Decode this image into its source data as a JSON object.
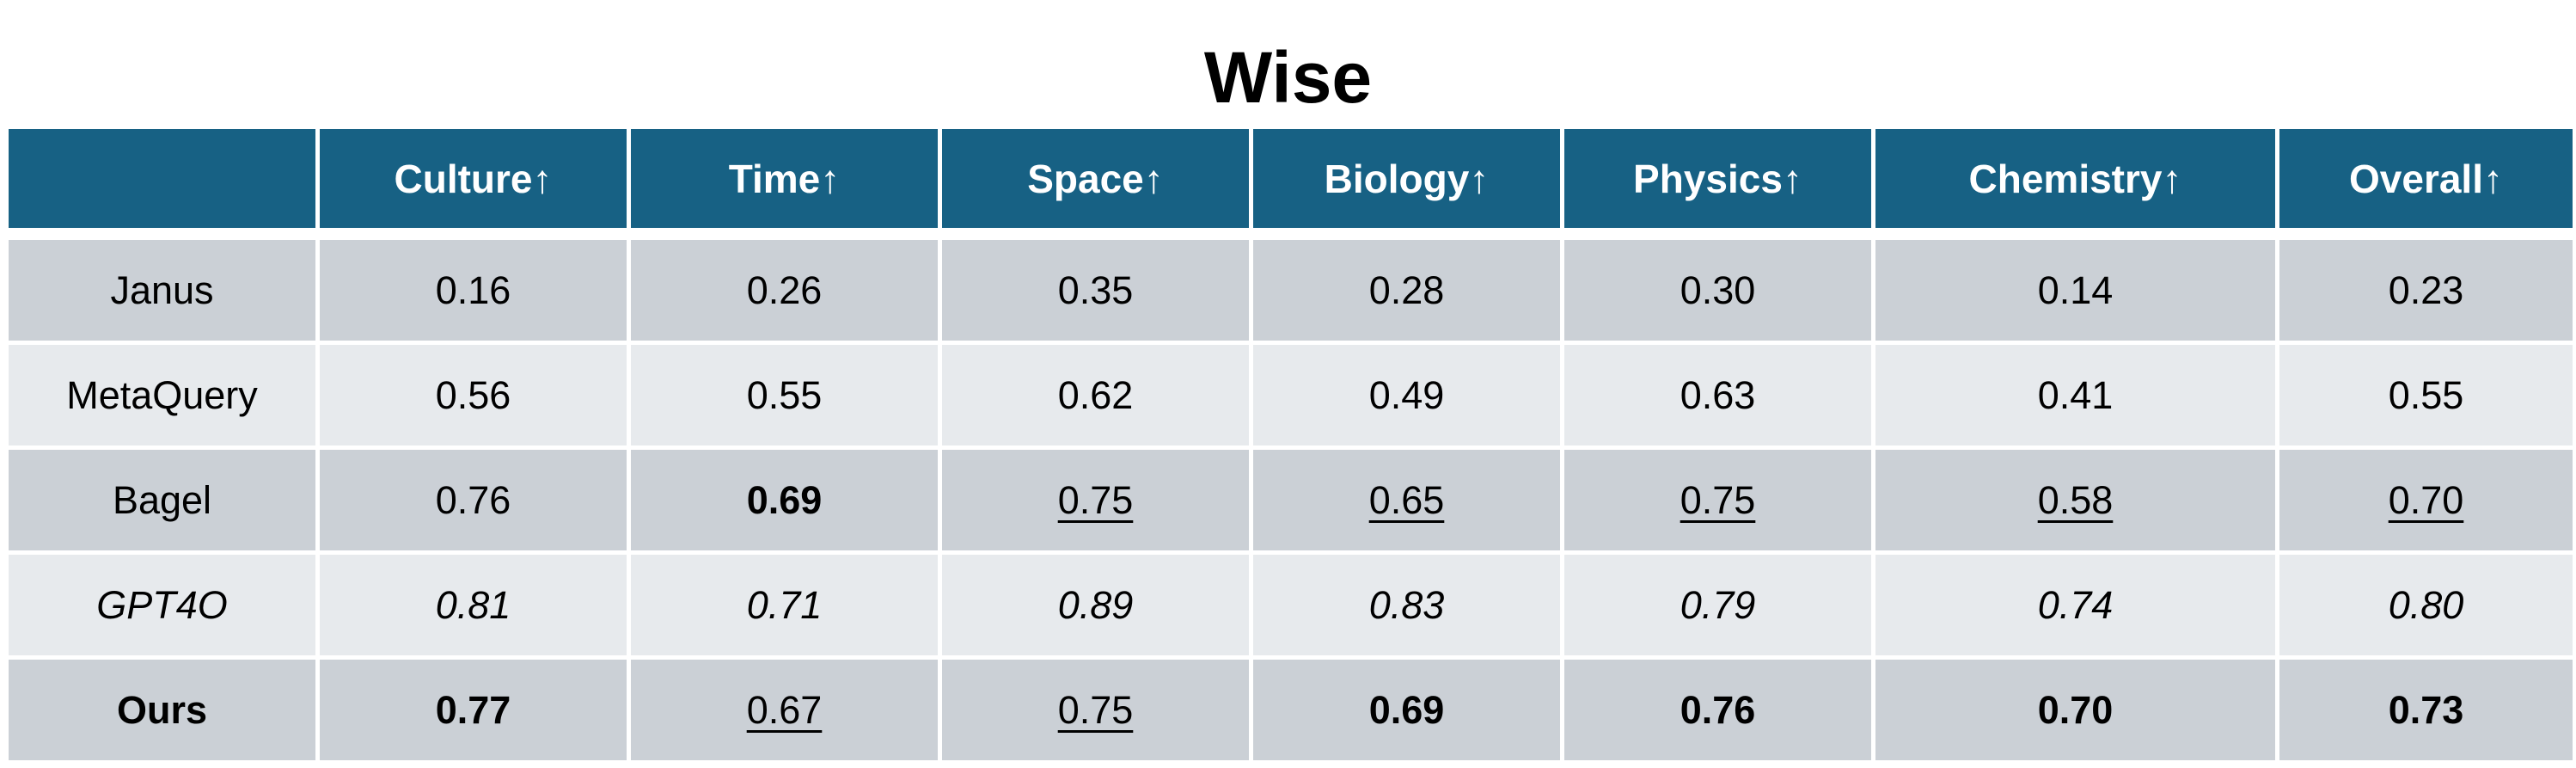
{
  "title": "Wise",
  "chart_data": {
    "type": "table",
    "title": "Wise",
    "columns": [
      "",
      "Culture↑",
      "Time↑",
      "Space↑",
      "Biology↑",
      "Physics↑",
      "Chemistry↑",
      "Overall↑"
    ],
    "rows": [
      {
        "model": "Janus",
        "model_style": "",
        "values": [
          "0.16",
          "0.26",
          "0.35",
          "0.28",
          "0.30",
          "0.14",
          "0.23"
        ],
        "styles": [
          "",
          "",
          "",
          "",
          "",
          "",
          ""
        ]
      },
      {
        "model": "MetaQuery",
        "model_style": "",
        "values": [
          "0.56",
          "0.55",
          "0.62",
          "0.49",
          "0.63",
          "0.41",
          "0.55"
        ],
        "styles": [
          "",
          "",
          "",
          "",
          "",
          "",
          ""
        ]
      },
      {
        "model": "Bagel",
        "model_style": "",
        "values": [
          "0.76",
          "0.69",
          "0.75",
          "0.65",
          "0.75",
          "0.58",
          "0.70"
        ],
        "styles": [
          "",
          "bold",
          "underline",
          "underline",
          "underline",
          "underline",
          "underline"
        ]
      },
      {
        "model": "GPT4O",
        "model_style": "italic",
        "values": [
          "0.81",
          "0.71",
          "0.89",
          "0.83",
          "0.79",
          "0.74",
          "0.80"
        ],
        "styles": [
          "italic",
          "italic",
          "italic",
          "italic",
          "italic",
          "italic",
          "italic"
        ]
      },
      {
        "model": "Ours",
        "model_style": "bold",
        "values": [
          "0.77",
          "0.67",
          "0.75",
          "0.69",
          "0.76",
          "0.70",
          "0.73"
        ],
        "styles": [
          "bold",
          "underline",
          "underline",
          "bold",
          "bold",
          "bold",
          "bold"
        ]
      }
    ]
  },
  "colors": {
    "header_bg": "#176184",
    "header_text": "#ffffff",
    "row_dark": "#cbd0d6",
    "row_light": "#e7eaed",
    "cell_border": "#ffffff"
  }
}
